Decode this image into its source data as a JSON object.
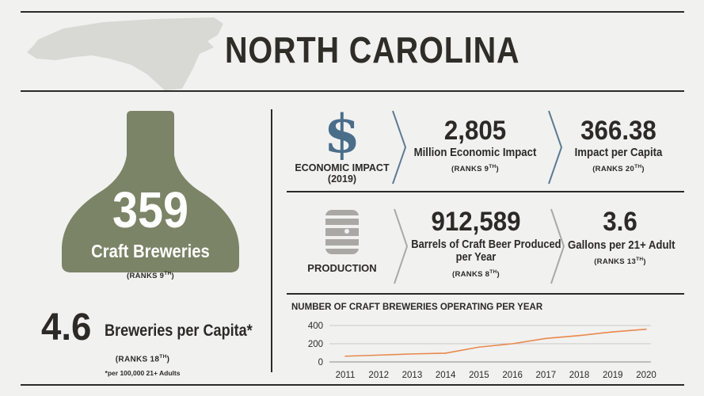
{
  "state": "NORTH CAROLINA",
  "breweries": {
    "count": "359",
    "label": "Craft Breweries",
    "rank_prefix": "(RANKS 9",
    "rank_suffix": "TH",
    "rank_close": ")"
  },
  "per_capita": {
    "value": "4.6",
    "label": "Breweries per Capita*",
    "rank_prefix": "(RANKS 18",
    "rank_suffix": "TH",
    "rank_close": ")",
    "footnote": "*per 100,000 21+ Adults"
  },
  "economic": {
    "section_label_line1": "ECONOMIC IMPACT",
    "section_label_line2": "(2019)",
    "icon": "dollar-icon",
    "impact_value": "2,805",
    "impact_label": "Million Economic Impact",
    "impact_rank_prefix": "(RANKS 9",
    "impact_rank_suffix": "TH",
    "impact_rank_close": ")",
    "capita_value": "366.38",
    "capita_label": "Impact per Capita",
    "capita_rank_prefix": "(RANKS 20",
    "capita_rank_suffix": "TH",
    "capita_rank_close": ")"
  },
  "production": {
    "section_label": "PRODUCTION",
    "icon": "keg-icon",
    "barrels_value": "912,589",
    "barrels_label_line1": "Barrels of Craft Beer Produced",
    "barrels_label_line2": "per Year",
    "barrels_rank_prefix": "(RANKS 8",
    "barrels_rank_suffix": "TH",
    "barrels_rank_close": ")",
    "gallons_value": "3.6",
    "gallons_label": "Gallons per 21+ Adult",
    "gallons_rank_prefix": "(RANKS 13",
    "gallons_rank_suffix": "TH",
    "gallons_rank_close": ")"
  },
  "colors": {
    "bottle": "#7b8466",
    "dollar": "#4a6d8a",
    "line": "#e8894c",
    "map": "#d8d8d4"
  },
  "chart_data": {
    "type": "line",
    "title": "NUMBER OF CRAFT BREWERIES OPERATING PER YEAR",
    "x": [
      "2011",
      "2012",
      "2013",
      "2014",
      "2015",
      "2016",
      "2017",
      "2018",
      "2019",
      "2020"
    ],
    "values": [
      63,
      75,
      88,
      96,
      163,
      200,
      258,
      290,
      330,
      359
    ],
    "ylim": [
      0,
      400
    ],
    "yticks": [
      "0",
      "200",
      "400"
    ],
    "grid": true
  }
}
